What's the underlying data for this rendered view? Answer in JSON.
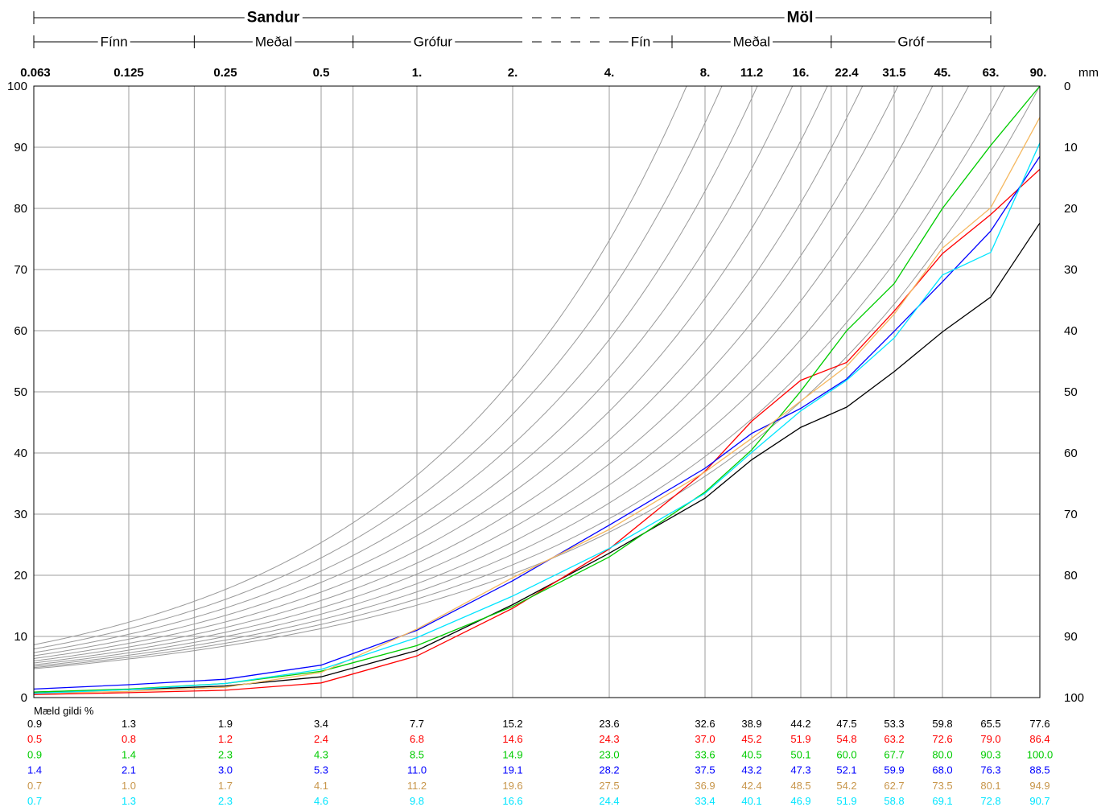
{
  "chart_data": {
    "type": "line",
    "unit": "mm",
    "x": [
      "0.063",
      "0.125",
      "0.25",
      "0.5",
      "1.",
      "2.",
      "4.",
      "8.",
      "11.2",
      "16.",
      "22.4",
      "31.5",
      "45.",
      "63.",
      "90."
    ],
    "x_values": [
      0.063,
      0.125,
      0.25,
      0.5,
      1,
      2,
      4,
      8,
      11.2,
      16,
      22.4,
      31.5,
      45,
      63,
      90
    ],
    "y_left_ticks": [
      "100",
      "90",
      "80",
      "70",
      "60",
      "50",
      "40",
      "30",
      "20",
      "10",
      "0"
    ],
    "y_right_ticks": [
      "0",
      "10",
      "20",
      "30",
      "40",
      "50",
      "60",
      "70",
      "80",
      "90",
      "100"
    ],
    "ylim": [
      0,
      100
    ],
    "x_scale": "log",
    "grid": true,
    "classification": {
      "major": [
        {
          "label": "Sandur",
          "from": 0.063,
          "to": 2
        },
        {
          "label": "Möl",
          "from": 4,
          "to": 63
        }
      ],
      "minor": [
        {
          "label": "Fínn",
          "from": 0.063,
          "to": 0.2
        },
        {
          "label": "Meðal",
          "from": 0.2,
          "to": 0.63
        },
        {
          "label": "Grófur",
          "from": 0.63,
          "to": 2
        },
        {
          "label": "Fín",
          "from": 4,
          "to": 6.3
        },
        {
          "label": "Meðal",
          "from": 6.3,
          "to": 20
        },
        {
          "label": "Gróf",
          "from": 20,
          "to": 63
        }
      ]
    },
    "table_title": "Mæld gildi %",
    "series": [
      {
        "color": "#000000",
        "values": [
          0.9,
          1.3,
          1.9,
          3.4,
          7.7,
          15.2,
          23.6,
          32.6,
          38.9,
          44.2,
          47.5,
          53.3,
          59.8,
          65.5,
          77.6
        ]
      },
      {
        "color": "#ff0000",
        "values": [
          0.5,
          0.8,
          1.2,
          2.4,
          6.8,
          14.6,
          24.3,
          37.0,
          45.2,
          51.9,
          54.8,
          63.2,
          72.6,
          79.0,
          86.4
        ]
      },
      {
        "color": "#00cc00",
        "values": [
          0.9,
          1.4,
          2.3,
          4.3,
          8.5,
          14.9,
          23.0,
          33.6,
          40.5,
          50.1,
          60.0,
          67.7,
          80.0,
          90.3,
          100.0
        ]
      },
      {
        "color": "#0000ff",
        "values": [
          1.4,
          2.1,
          3.0,
          5.3,
          11.0,
          19.1,
          28.2,
          37.5,
          43.2,
          47.3,
          52.1,
          59.9,
          68.0,
          76.3,
          88.5
        ]
      },
      {
        "color": "#c8964b",
        "line_color": "#f5b860",
        "values": [
          0.7,
          1.0,
          1.7,
          4.1,
          11.2,
          19.6,
          27.5,
          36.9,
          42.4,
          48.5,
          54.2,
          62.7,
          73.5,
          80.1,
          94.9
        ]
      },
      {
        "color": "#00e5ff",
        "values": [
          0.7,
          1.3,
          2.3,
          4.6,
          9.8,
          16.6,
          24.4,
          33.4,
          40.1,
          46.9,
          51.9,
          58.8,
          69.1,
          72.8,
          90.7
        ]
      }
    ],
    "reference_curves": {
      "color": "#999999",
      "count": 11
    }
  }
}
